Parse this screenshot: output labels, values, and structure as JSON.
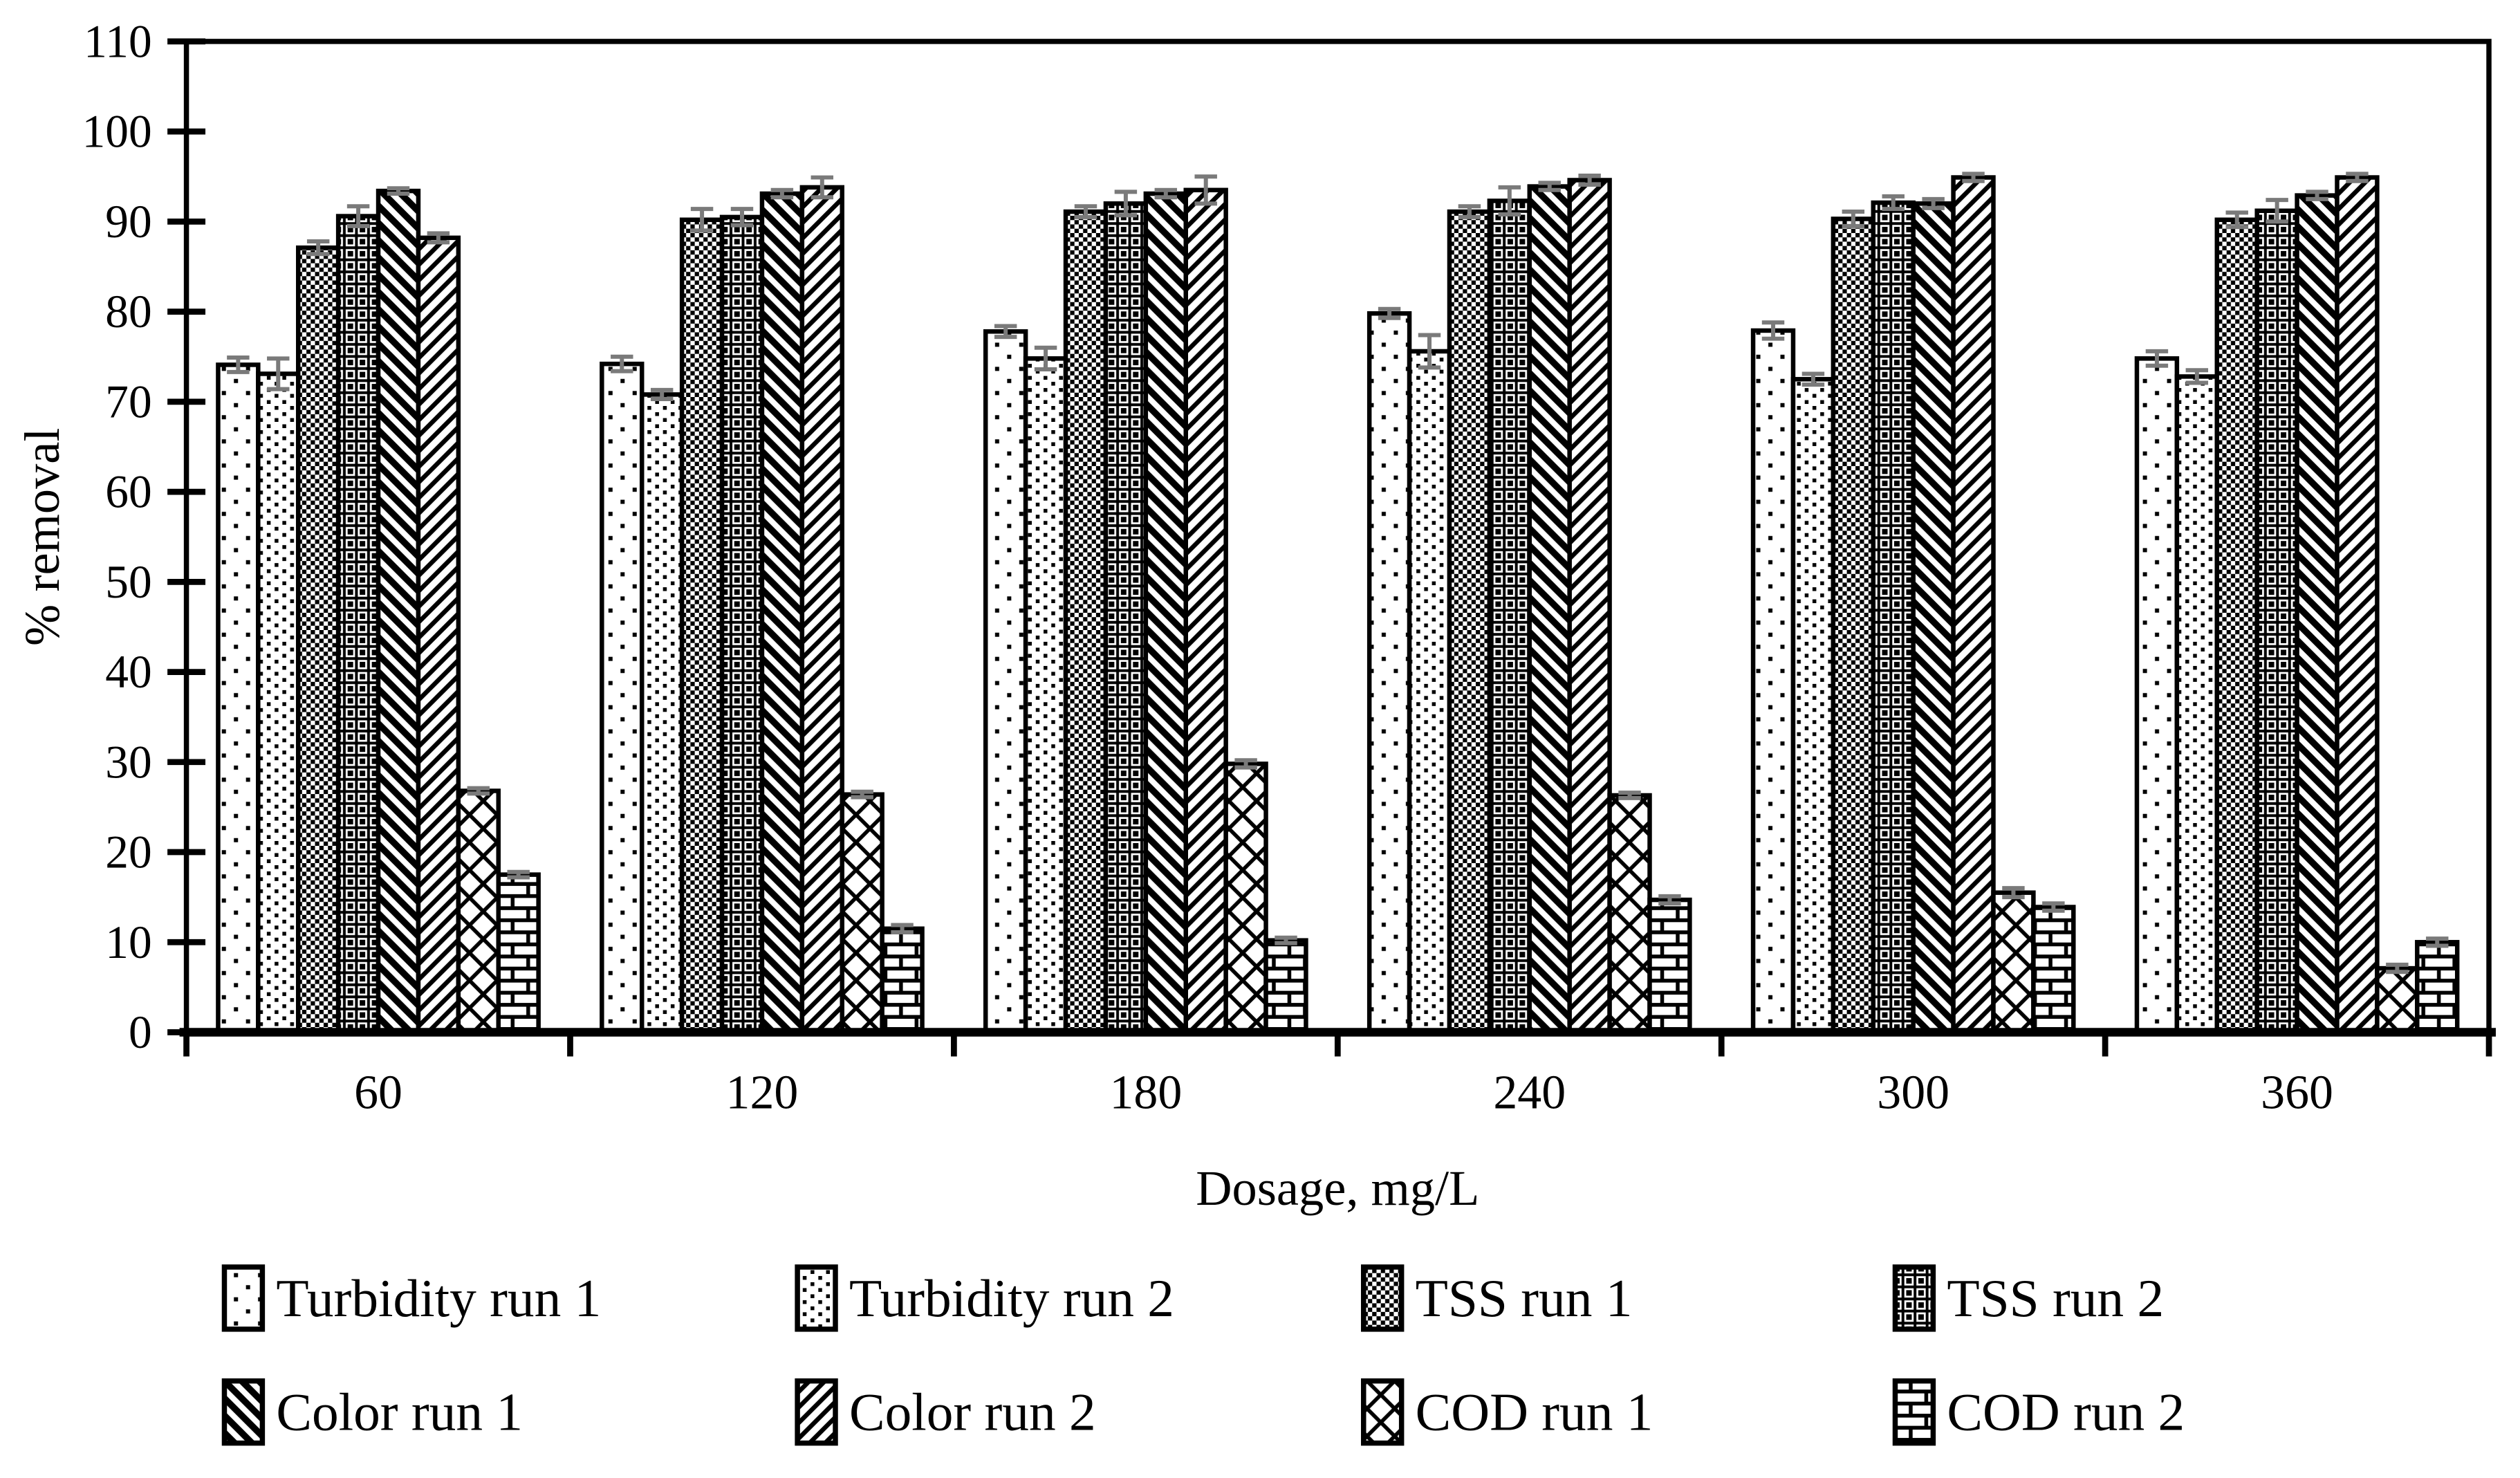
{
  "figure": {
    "background": "#ffffff",
    "frame_color": "#000000",
    "error_bar_color": "#7a7a7a",
    "bar_outline_color": "#000000"
  },
  "chart_data": {
    "type": "bar",
    "title": "",
    "xlabel": "Dosage, mg/L",
    "ylabel": "% removal",
    "ylim": [
      0,
      110
    ],
    "ytick_step": 10,
    "ytick_labels": [
      "0",
      "10",
      "20",
      "30",
      "40",
      "50",
      "60",
      "70",
      "80",
      "90",
      "100",
      "110"
    ],
    "categories": [
      "60",
      "120",
      "180",
      "240",
      "300",
      "360"
    ],
    "grid": false,
    "legend_position": "bottom",
    "legend_rows": [
      [
        "Turbidity run 1",
        "Turbidity run 2",
        "TSS run 1",
        "TSS run 2"
      ],
      [
        "Color run 1",
        "Color run 2",
        "COD run 1",
        "COD run 2"
      ]
    ],
    "series": [
      {
        "name": "Turbidity run 1",
        "pattern": "dots-sparse",
        "values": [
          74.1,
          74.2,
          77.8,
          79.8,
          77.9,
          74.8
        ],
        "errors": [
          0.8,
          0.8,
          0.6,
          0.5,
          0.9,
          0.8
        ]
      },
      {
        "name": "Turbidity run 2",
        "pattern": "dots-dense",
        "values": [
          73.1,
          70.8,
          74.8,
          75.6,
          72.5,
          72.8
        ],
        "errors": [
          1.7,
          0.5,
          1.2,
          1.8,
          0.6,
          0.7
        ]
      },
      {
        "name": "TSS run 1",
        "pattern": "checker-fine",
        "values": [
          87.1,
          90.2,
          91.1,
          91.1,
          90.3,
          90.2
        ],
        "errors": [
          0.7,
          1.2,
          0.6,
          0.6,
          0.8,
          0.8
        ]
      },
      {
        "name": "TSS run 2",
        "pattern": "checker-cross",
        "values": [
          90.6,
          90.5,
          92.0,
          92.3,
          92.1,
          91.2
        ],
        "errors": [
          1.1,
          0.9,
          1.3,
          1.5,
          0.7,
          1.2
        ]
      },
      {
        "name": "Color run 1",
        "pattern": "diagonal-down",
        "values": [
          93.4,
          93.1,
          93.1,
          93.9,
          92.0,
          92.9
        ],
        "errors": [
          0.3,
          0.4,
          0.4,
          0.4,
          0.5,
          0.4
        ]
      },
      {
        "name": "Color run 2",
        "pattern": "diagonal-up",
        "values": [
          88.2,
          93.8,
          93.5,
          94.6,
          94.9,
          94.9
        ],
        "errors": [
          0.5,
          1.1,
          1.5,
          0.5,
          0.4,
          0.4
        ]
      },
      {
        "name": "COD run 1",
        "pattern": "diamond-lattice",
        "values": [
          26.8,
          26.4,
          29.8,
          26.3,
          15.5,
          7.1
        ],
        "errors": [
          0.3,
          0.3,
          0.4,
          0.3,
          0.5,
          0.4
        ]
      },
      {
        "name": "COD run 2",
        "pattern": "brick",
        "values": [
          17.5,
          11.5,
          10.2,
          14.7,
          13.9,
          10.0
        ],
        "errors": [
          0.3,
          0.4,
          0.3,
          0.4,
          0.4,
          0.4
        ]
      }
    ]
  }
}
